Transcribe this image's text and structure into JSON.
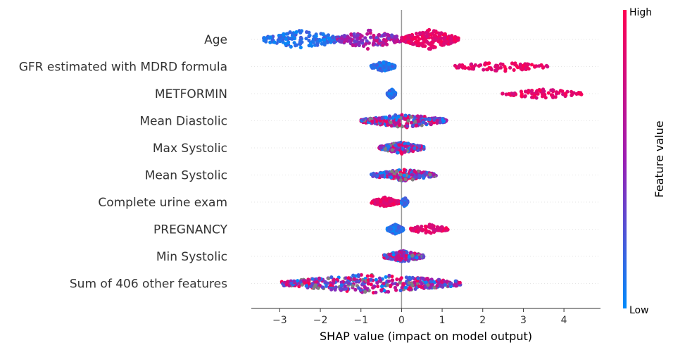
{
  "chart_data": {
    "type": "scatter",
    "subtype": "shap-beeswarm",
    "xlabel": "SHAP value (impact on model output)",
    "xlim": [
      -3.7,
      4.9
    ],
    "xticks": [
      -3,
      -2,
      -1,
      0,
      1,
      2,
      3,
      4
    ],
    "xtick_labels": [
      "−3",
      "−2",
      "−1",
      "0",
      "1",
      "2",
      "3",
      "4"
    ],
    "colorbar": {
      "title": "Feature value",
      "high_label": "High",
      "low_label": "Low",
      "low_color": "#008bfb",
      "high_color": "#ff0052",
      "mid_color": "#9b1db3",
      "missing_color": "#808080"
    },
    "features": [
      {
        "name": "Age",
        "min": -3.4,
        "max": 1.4,
        "spread": 1.0,
        "clusters": [
          {
            "min": -3.4,
            "max": -1.5,
            "count": 170,
            "color": "low"
          },
          {
            "min": -1.6,
            "max": 0.0,
            "count": 140,
            "color": "mid"
          },
          {
            "min": 0.0,
            "max": 1.4,
            "count": 230,
            "color": "high"
          }
        ]
      },
      {
        "name": "GFR estimated with MDRD formula",
        "min": -0.75,
        "max": 3.6,
        "spread": 0.5,
        "clusters": [
          {
            "min": -0.75,
            "max": -0.15,
            "count": 140,
            "color": "low"
          },
          {
            "min": 1.3,
            "max": 3.6,
            "count": 90,
            "color": "high"
          }
        ]
      },
      {
        "name": "METFORMIN",
        "min": -0.35,
        "max": 4.45,
        "spread": 0.5,
        "clusters": [
          {
            "min": -0.35,
            "max": -0.15,
            "count": 140,
            "color": "low"
          },
          {
            "min": 2.45,
            "max": 4.45,
            "count": 80,
            "color": "high"
          }
        ]
      },
      {
        "name": "Mean Diastolic",
        "min": -1.0,
        "max": 1.15,
        "spread": 0.7,
        "clusters": [
          {
            "min": -1.0,
            "max": 1.15,
            "count": 260,
            "color": "mixed"
          }
        ]
      },
      {
        "name": "Max Systolic",
        "min": -0.55,
        "max": 0.55,
        "spread": 0.6,
        "clusters": [
          {
            "min": -0.55,
            "max": 0.55,
            "count": 200,
            "color": "mixed"
          }
        ]
      },
      {
        "name": "Mean Systolic",
        "min": -0.75,
        "max": 0.85,
        "spread": 0.6,
        "clusters": [
          {
            "min": -0.75,
            "max": 0.85,
            "count": 200,
            "color": "mixed"
          }
        ]
      },
      {
        "name": "Complete urine exam",
        "min": -0.75,
        "max": 0.15,
        "spread": 0.5,
        "clusters": [
          {
            "min": -0.75,
            "max": -0.05,
            "count": 120,
            "color": "high"
          },
          {
            "min": 0.0,
            "max": 0.15,
            "count": 60,
            "color": "low"
          }
        ]
      },
      {
        "name": "PREGNANCY",
        "min": -0.35,
        "max": 1.15,
        "spread": 0.5,
        "clusters": [
          {
            "min": -0.35,
            "max": 0.05,
            "count": 170,
            "color": "low"
          },
          {
            "min": 0.2,
            "max": 1.15,
            "count": 70,
            "color": "high"
          }
        ]
      },
      {
        "name": "Min Systolic",
        "min": -0.45,
        "max": 0.55,
        "spread": 0.6,
        "clusters": [
          {
            "min": -0.45,
            "max": 0.55,
            "count": 200,
            "color": "mixed"
          }
        ]
      },
      {
        "name": "Sum of 406 other features",
        "min": -2.95,
        "max": 1.45,
        "spread": 1.0,
        "clusters": [
          {
            "min": -2.95,
            "max": 1.45,
            "count": 420,
            "color": "mixed"
          }
        ]
      }
    ]
  }
}
